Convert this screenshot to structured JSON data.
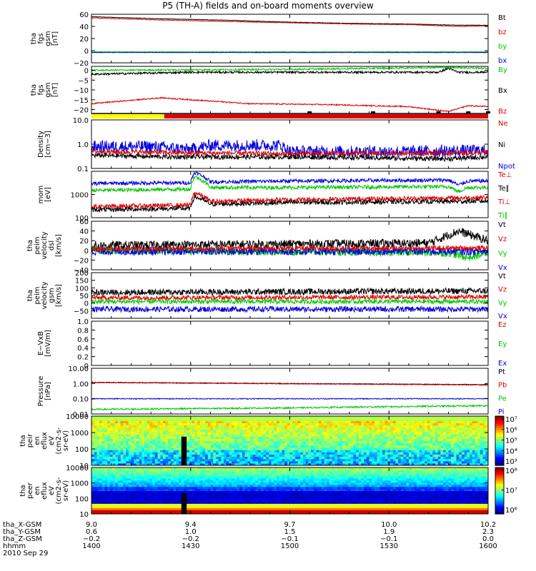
{
  "title": "P5 (TH-A) fields and on-board moments overview",
  "date_label": "2010 Sep 29",
  "colors": {
    "black": "#000000",
    "red": "#e00000",
    "green": "#00c800",
    "blue": "#0000e0",
    "yellow": "#ffff00"
  },
  "status_bar": {
    "yellow_end_hour": 14.367
  },
  "chart_data": [
    {
      "type": "line",
      "ylabel": [
        "tha",
        "fgs",
        "gsm",
        "[nT]"
      ],
      "ylim": [
        -20,
        60
      ],
      "yticks": [
        -20,
        0,
        20,
        40,
        60
      ],
      "yticklabels": [
        "−20",
        "0",
        "20",
        "40",
        "60"
      ],
      "legend": [
        "Bt",
        "bz",
        "by",
        "bx"
      ],
      "legend_colors": [
        "black",
        "red",
        "green",
        "blue"
      ],
      "series": [
        {
          "color": "black",
          "base": [
            [
              14.0,
              56
            ],
            [
              14.3,
              53
            ],
            [
              14.7,
              50
            ],
            [
              15.0,
              47
            ],
            [
              15.3,
              45
            ],
            [
              15.6,
              44
            ],
            [
              15.85,
              42
            ],
            [
              16.0,
              42
            ]
          ],
          "noise": 0.4
        },
        {
          "color": "red",
          "base": [
            [
              14.0,
              54
            ],
            [
              14.3,
              51
            ],
            [
              14.7,
              48
            ],
            [
              15.0,
              46
            ],
            [
              15.3,
              44
            ],
            [
              15.6,
              43
            ],
            [
              15.85,
              40
            ],
            [
              16.0,
              41
            ]
          ],
          "noise": 0.4
        },
        {
          "color": "green",
          "base": [
            [
              14.0,
              -2
            ],
            [
              16.0,
              -2
            ]
          ],
          "noise": 0.4
        },
        {
          "color": "blue",
          "base": [
            [
              14.0,
              -3
            ],
            [
              16.0,
              -3
            ]
          ],
          "noise": 0.4
        }
      ]
    },
    {
      "type": "line",
      "ylabel": [
        "tha",
        "fgs",
        "gsm",
        "[nT]"
      ],
      "ylim": [
        -22,
        2
      ],
      "yticks": [
        -20,
        -15,
        -10,
        -5,
        0
      ],
      "yticklabels": [
        "−20",
        "−15",
        "−10",
        "−5",
        "0"
      ],
      "legend": [
        "By",
        "Bx",
        "Bz"
      ],
      "legend_colors": [
        "green",
        "black",
        "red"
      ],
      "series": [
        {
          "color": "green",
          "base": [
            [
              14.0,
              0
            ],
            [
              15.0,
              0.5
            ],
            [
              15.8,
              1.5
            ],
            [
              16.0,
              1
            ]
          ],
          "noise": 0.4
        },
        {
          "color": "black",
          "base": [
            [
              14.0,
              -2
            ],
            [
              14.5,
              -1
            ],
            [
              15.0,
              -1
            ],
            [
              15.75,
              -1
            ],
            [
              15.8,
              1
            ],
            [
              15.85,
              -1
            ],
            [
              16.0,
              -1
            ]
          ],
          "noise": 0.5
        },
        {
          "color": "red",
          "base": [
            [
              14.0,
              -17
            ],
            [
              14.35,
              -14
            ],
            [
              14.5,
              -15
            ],
            [
              14.8,
              -17
            ],
            [
              15.2,
              -17.5
            ],
            [
              15.6,
              -18.5
            ],
            [
              15.8,
              -21
            ],
            [
              15.9,
              -18
            ],
            [
              16.0,
              -18.5
            ]
          ],
          "noise": 0.3
        }
      ]
    },
    {
      "type": "line",
      "log": true,
      "ylabel": [
        "Density",
        "[cm−3]"
      ],
      "ylim": [
        0.1,
        10
      ],
      "yticks": [
        0.1,
        1,
        10
      ],
      "yticklabels": [
        "0.1",
        "1.0",
        "10.0"
      ],
      "legend": [
        "Ne",
        "Ni",
        "Npot"
      ],
      "legend_colors": [
        "red",
        "black",
        "blue"
      ],
      "series": [
        {
          "color": "blue",
          "base": [
            [
              14.0,
              0.8
            ],
            [
              14.3,
              0.8
            ],
            [
              14.5,
              0.6
            ],
            [
              14.6,
              0.9
            ],
            [
              14.95,
              0.9
            ],
            [
              15.0,
              0.5
            ],
            [
              15.6,
              0.5
            ],
            [
              16.0,
              0.55
            ]
          ],
          "noise": 0.25
        },
        {
          "color": "red",
          "base": [
            [
              14.0,
              0.5
            ],
            [
              14.4,
              0.45
            ],
            [
              15.0,
              0.4
            ],
            [
              16.0,
              0.45
            ]
          ],
          "noise": 0.1
        },
        {
          "color": "black",
          "base": [
            [
              14.0,
              0.35
            ],
            [
              14.4,
              0.3
            ],
            [
              15.0,
              0.3
            ],
            [
              15.8,
              0.25
            ],
            [
              16.0,
              0.3
            ]
          ],
          "noise": 0.1
        }
      ]
    },
    {
      "type": "line",
      "log": true,
      "ylabel": [
        "mom",
        "[eV]"
      ],
      "ylim": [
        100,
        10000
      ],
      "yticks": [
        100,
        1000
      ],
      "yticklabels": [
        "100",
        "1000"
      ],
      "legend": [
        "Te⊥",
        "Te∥",
        "Ti⊥",
        "Ti∥"
      ],
      "legend_colors": [
        "red",
        "black",
        "red",
        "green"
      ],
      "series": [
        {
          "color": "blue",
          "base": [
            [
              14.0,
              3000
            ],
            [
              14.5,
              3200
            ],
            [
              14.52,
              9000
            ],
            [
              14.6,
              3500
            ],
            [
              15.0,
              3800
            ],
            [
              15.8,
              4200
            ],
            [
              15.85,
              2500
            ],
            [
              15.9,
              3800
            ],
            [
              16.0,
              3800
            ]
          ],
          "noise": 0.08
        },
        {
          "color": "green",
          "base": [
            [
              14.0,
              1500
            ],
            [
              14.5,
              1700
            ],
            [
              14.52,
              6000
            ],
            [
              14.6,
              2000
            ],
            [
              15.0,
              2000
            ],
            [
              15.8,
              2200
            ],
            [
              15.85,
              1300
            ],
            [
              15.9,
              2000
            ],
            [
              16.0,
              2000
            ]
          ],
          "noise": 0.08
        },
        {
          "color": "red",
          "base": [
            [
              14.0,
              300
            ],
            [
              14.5,
              350
            ],
            [
              14.52,
              1200
            ],
            [
              14.6,
              500
            ],
            [
              15.0,
              600
            ],
            [
              15.8,
              700
            ],
            [
              16.0,
              750
            ]
          ],
          "noise": 0.1
        },
        {
          "color": "black",
          "base": [
            [
              14.0,
              220
            ],
            [
              14.5,
              250
            ],
            [
              14.52,
              800
            ],
            [
              14.6,
              380
            ],
            [
              15.0,
              450
            ],
            [
              15.8,
              500
            ],
            [
              16.0,
              520
            ]
          ],
          "noise": 0.1
        }
      ]
    },
    {
      "type": "line",
      "ylabel": [
        "tha",
        "peim",
        "velocity",
        "dsl",
        "[km/s]"
      ],
      "ylim": [
        -40,
        60
      ],
      "yticks": [
        -40,
        -20,
        0,
        20,
        40,
        60
      ],
      "yticklabels": [
        "−40",
        "−20",
        "0",
        "20",
        "40",
        "60"
      ],
      "legend": [
        "Vt",
        "Vz",
        "Vy",
        "Vx"
      ],
      "legend_colors": [
        "black",
        "red",
        "green",
        "blue"
      ],
      "series": [
        {
          "color": "black",
          "base": [
            [
              14.0,
              10
            ],
            [
              15.7,
              15
            ],
            [
              15.85,
              40
            ],
            [
              16.0,
              20
            ]
          ],
          "noise": 9
        },
        {
          "color": "green",
          "base": [
            [
              14.0,
              0
            ],
            [
              15.8,
              -5
            ],
            [
              15.9,
              -15
            ],
            [
              16.0,
              -5
            ]
          ],
          "noise": 8
        },
        {
          "color": "blue",
          "base": [
            [
              14.0,
              -2
            ],
            [
              16.0,
              -2
            ]
          ],
          "noise": 8
        },
        {
          "color": "red",
          "base": [
            [
              14.0,
              3
            ],
            [
              16.0,
              5
            ]
          ],
          "noise": 5
        }
      ]
    },
    {
      "type": "line",
      "ylabel": [
        "tha",
        "peim",
        "velocity",
        "gsm",
        "[km/s]"
      ],
      "ylim": [
        -100,
        200
      ],
      "yticks": [
        -50,
        0,
        50,
        100,
        150,
        200
      ],
      "yticklabels": [
        "−50",
        "0",
        "50",
        "100",
        "150",
        "200"
      ],
      "legend": [
        "Vt",
        "Vz",
        "Vy",
        "Vx"
      ],
      "legend_colors": [
        "black",
        "red",
        "green",
        "blue"
      ],
      "series": [
        {
          "color": "black",
          "base": [
            [
              14.0,
              70
            ],
            [
              16.0,
              80
            ]
          ],
          "noise": 20
        },
        {
          "color": "red",
          "base": [
            [
              14.0,
              35
            ],
            [
              16.0,
              40
            ]
          ],
          "noise": 15
        },
        {
          "color": "green",
          "base": [
            [
              14.0,
              10
            ],
            [
              16.0,
              10
            ]
          ],
          "noise": 15
        },
        {
          "color": "blue",
          "base": [
            [
              14.0,
              -40
            ],
            [
              16.0,
              -40
            ]
          ],
          "noise": 18
        }
      ]
    },
    {
      "type": "line",
      "ylabel": [
        "E−VxB",
        "[mV/m]"
      ],
      "ylim": [
        0,
        1
      ],
      "yticks": [
        0,
        0.2,
        0.4,
        0.6,
        0.8,
        1.0
      ],
      "yticklabels": [
        "0",
        "0.2",
        "0.4",
        "0.6",
        "0.8",
        "1.0"
      ],
      "legend": [
        "Ez",
        "Ey",
        "Ex"
      ],
      "legend_colors": [
        "red",
        "green",
        "blue"
      ],
      "series": []
    },
    {
      "type": "line",
      "log": true,
      "ylabel": [
        "Pressure",
        "[nPa]"
      ],
      "ylim": [
        0.01,
        10
      ],
      "yticks": [
        0.01,
        0.1,
        1,
        10
      ],
      "yticklabels": [
        "0.01",
        "0.10",
        "1.00",
        "10.00"
      ],
      "legend": [
        "Pt",
        "Pb",
        "Pe",
        "Pi"
      ],
      "legend_colors": [
        "black",
        "red",
        "green",
        "blue"
      ],
      "series": [
        {
          "color": "black",
          "base": [
            [
              14.0,
              1.2
            ],
            [
              15.0,
              1.0
            ],
            [
              16.0,
              0.85
            ]
          ],
          "noise": 0.02
        },
        {
          "color": "red",
          "base": [
            [
              14.0,
              1.15
            ],
            [
              15.0,
              0.95
            ],
            [
              16.0,
              0.8
            ]
          ],
          "noise": 0.02
        },
        {
          "color": "blue",
          "base": [
            [
              14.0,
              0.1
            ],
            [
              16.0,
              0.1
            ]
          ],
          "noise": 0.03
        },
        {
          "color": "green",
          "base": [
            [
              14.0,
              0.02
            ],
            [
              15.0,
              0.025
            ],
            [
              16.0,
              0.035
            ]
          ],
          "noise": 0.05
        }
      ]
    },
    {
      "type": "heatmap",
      "ylabel": [
        "tha",
        "peir",
        "en",
        "eflux",
        "eV",
        "(cm2-s-",
        "sr-eV)"
      ],
      "ylim": [
        10,
        10000
      ],
      "yticks": [
        10,
        100,
        1000,
        10000
      ],
      "yticklabels": [
        "10",
        "100",
        "1000",
        "10000"
      ],
      "colorbar": {
        "labels": [
          "10⁷",
          "10⁶",
          "10⁵",
          "10⁴",
          "10³"
        ],
        "range_exp": [
          3,
          7
        ]
      }
    },
    {
      "type": "heatmap",
      "ylabel": [
        "tha",
        "peer",
        "en",
        "eflux",
        "eV",
        "(cm2-s-",
        "sr-eV)"
      ],
      "ylim": [
        10,
        10000
      ],
      "yticks": [
        10,
        100,
        1000,
        10000
      ],
      "yticklabels": [
        "10",
        "100",
        "1000",
        "10000"
      ],
      "colorbar": {
        "labels": [
          "10⁸",
          "10⁷",
          "10⁶"
        ],
        "range_exp": [
          5.5,
          8.3
        ]
      }
    }
  ],
  "xaxis": {
    "range": [
      14.0,
      16.0
    ],
    "row_labels": [
      "tha_X-GSM",
      "tha_Y-GSM",
      "tha_Z-GSM",
      "hhmm"
    ],
    "ticks": [
      {
        "t": 14.0,
        "vals": [
          "9.0",
          "0.6",
          "−0.2",
          "1400"
        ]
      },
      {
        "t": 14.5,
        "vals": [
          "9.4",
          "1.0",
          "−0.2",
          "1430"
        ]
      },
      {
        "t": 15.0,
        "vals": [
          "9.7",
          "1.5",
          "−0.1",
          "1500"
        ]
      },
      {
        "t": 15.5,
        "vals": [
          "10.0",
          "1.9",
          "−0.1",
          "1530"
        ]
      },
      {
        "t": 16.0,
        "vals": [
          "10.2",
          "2.3",
          "0.0",
          "1600"
        ]
      }
    ]
  }
}
